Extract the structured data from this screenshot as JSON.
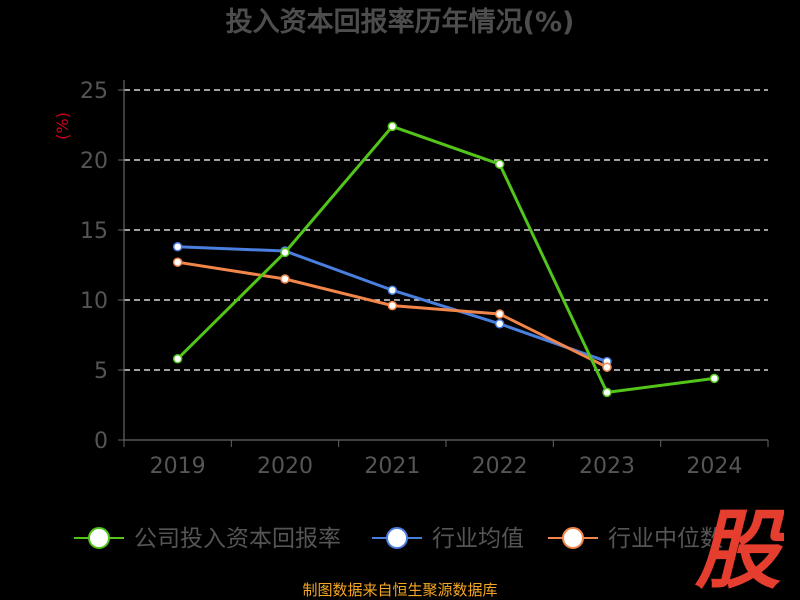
{
  "chart_data": {
    "type": "line",
    "title": "投入资本回报率历年情况(%)",
    "ylabel": "(%)",
    "categories": [
      "2019",
      "2020",
      "2021",
      "2022",
      "2023",
      "2024"
    ],
    "y_ticks": [
      "0",
      "5",
      "10",
      "15",
      "20",
      "25"
    ],
    "ylim": [
      0,
      25
    ],
    "grid": true,
    "legend_position": "bottom",
    "series": [
      {
        "name": "公司投入资本回报率",
        "color": "#52c41a",
        "values": [
          5.8,
          13.4,
          22.4,
          19.7,
          3.4,
          4.4
        ]
      },
      {
        "name": "行业均值",
        "color": "#4a7fe0",
        "values": [
          13.8,
          13.5,
          10.7,
          8.3,
          5.6,
          null
        ]
      },
      {
        "name": "行业中位数",
        "color": "#f2854a",
        "values": [
          12.7,
          11.5,
          9.6,
          9.0,
          5.2,
          null
        ]
      }
    ]
  },
  "watermark": {
    "text": "股",
    "color": "#e53e2e"
  },
  "source_text": "制图数据来自恒生聚源数据库"
}
